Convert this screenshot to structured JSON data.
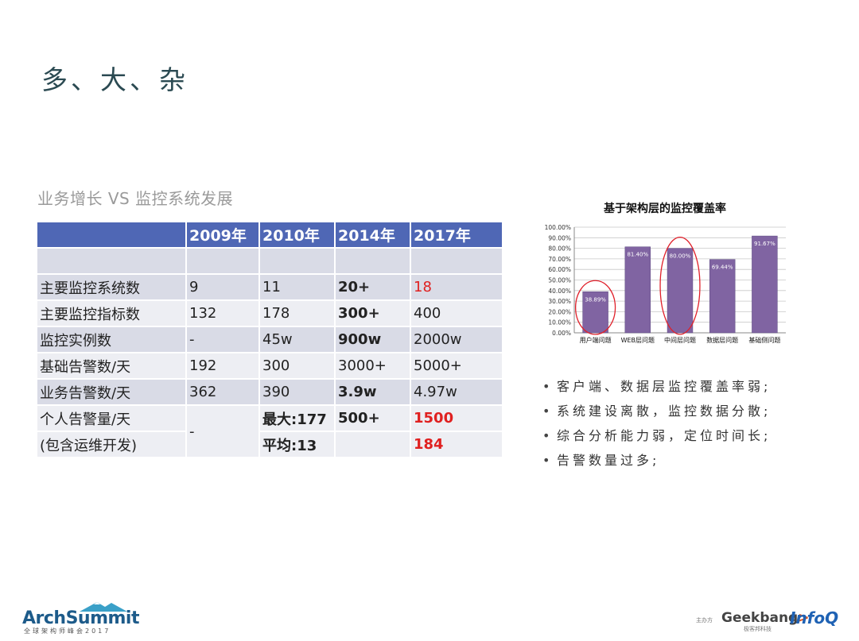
{
  "title": "多、大、杂",
  "subtitle": "业务增长 VS 监控系统发展",
  "table": {
    "headers": [
      "",
      "2009年",
      "2010年",
      "2014年",
      "2017年"
    ],
    "rows": [
      [
        "主要监控系统数",
        "9",
        "11",
        "20+",
        "18"
      ],
      [
        "主要监控指标数",
        "132",
        "178",
        "300+",
        "400"
      ],
      [
        "监控实例数",
        "-",
        "45w",
        "900w",
        "2000w"
      ],
      [
        "基础告警数/天",
        "192",
        "300",
        "3000+",
        "5000+"
      ],
      [
        "业务告警数/天",
        "362",
        "390",
        "3.9w",
        "4.97w"
      ]
    ],
    "personal": {
      "label1": "个人告警量/天",
      "label2": "(包含运维开发)",
      "y2009": "-",
      "y2010_a": "最大:177",
      "y2010_b": "平均:13",
      "y2014": "500+",
      "y2017_a": "1500",
      "y2017_b": "184"
    }
  },
  "chart_data": {
    "type": "bar",
    "title": "基于架构层的监控覆盖率",
    "categories": [
      "用户端问题",
      "WEB层问题",
      "中间层问题",
      "数据层问题",
      "基础侧问题"
    ],
    "values": [
      38.89,
      81.4,
      80.0,
      69.44,
      91.67
    ],
    "data_labels": [
      "38.89%",
      "81.40%",
      "80.00%",
      "69.44%",
      "91.67%"
    ],
    "ylim": [
      0,
      100
    ],
    "yticks": [
      "0.00%",
      "10.00%",
      "20.00%",
      "30.00%",
      "40.00%",
      "50.00%",
      "60.00%",
      "70.00%",
      "80.00%",
      "90.00%",
      "100.00%"
    ],
    "highlighted": [
      "用户端问题",
      "中间层问题"
    ],
    "grid": true,
    "colors": {
      "bar": "#8064a2",
      "highlight": "#e0202a"
    }
  },
  "bullets": [
    "客户端、数据层监控覆盖率弱;",
    "系统建设离散，监控数据分散;",
    "综合分析能力弱，定位时间长;",
    "告警数量过多;"
  ],
  "footer": {
    "arch_logo": "ArchSummit",
    "arch_sub": "全球架构师峰会2017",
    "sponsor_label": "主办方",
    "geekbang": "Geekbang",
    "geekbang_sub": "极客邦科技",
    "infoq": "InfoQ"
  }
}
